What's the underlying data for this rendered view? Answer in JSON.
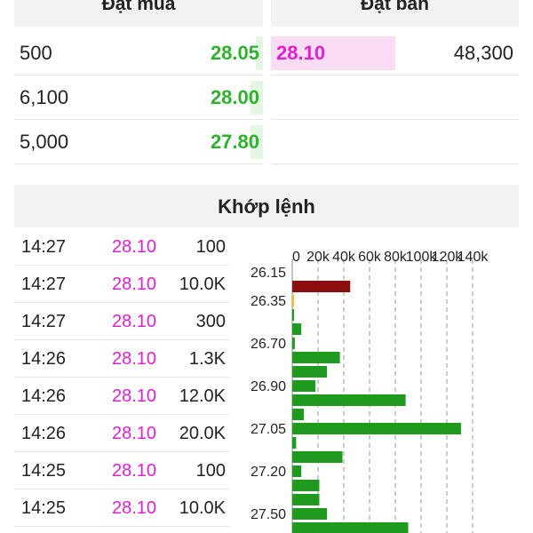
{
  "order_book": {
    "buy_title": "Đặt mua",
    "sell_title": "Đặt bán",
    "buy": [
      {
        "qty": "500",
        "price": "28.05",
        "depth": 0.03
      },
      {
        "qty": "6,100",
        "price": "28.00",
        "depth": 0.05
      },
      {
        "qty": "5,000",
        "price": "27.80",
        "depth": 0.05
      }
    ],
    "sell": [
      {
        "price": "28.10",
        "qty": "48,300",
        "depth": 0.5
      }
    ]
  },
  "trades": {
    "title": "Khớp lệnh",
    "rows": [
      {
        "time": "14:27",
        "price": "28.10",
        "volume": "100"
      },
      {
        "time": "14:27",
        "price": "28.10",
        "volume": "10.0K"
      },
      {
        "time": "14:27",
        "price": "28.10",
        "volume": "300"
      },
      {
        "time": "14:26",
        "price": "28.10",
        "volume": "1.3K"
      },
      {
        "time": "14:26",
        "price": "28.10",
        "volume": "12.0K"
      },
      {
        "time": "14:26",
        "price": "28.10",
        "volume": "20.0K"
      },
      {
        "time": "14:25",
        "price": "28.10",
        "volume": "100"
      },
      {
        "time": "14:25",
        "price": "28.10",
        "volume": "10.0K"
      }
    ]
  },
  "colors": {
    "buy_green": "#2fb32f",
    "sell_magenta": "#e020d0",
    "bar_green": "#1f9a1f",
    "bar_darkred": "#8b0e0e",
    "bar_yellow": "#f0c020"
  },
  "chart_data": {
    "type": "bar",
    "orientation": "horizontal",
    "x_ticks": [
      "0",
      "20k",
      "40k",
      "60k",
      "80k",
      "100k",
      "120k",
      "140k"
    ],
    "x_tick_labels": [
      "0",
      "20k",
      "40k",
      "60k",
      "80k",
      "100k",
      "120k",
      "140k"
    ],
    "xlim": [
      0,
      140000
    ],
    "y_labels": [
      "26.15",
      "26.35",
      "26.70",
      "26.90",
      "27.05",
      "27.20",
      "27.50"
    ],
    "y_label_index": [
      0,
      2,
      5,
      8,
      11,
      14,
      17
    ],
    "bars": [
      {
        "value": 45000,
        "color": "#8b0e0e"
      },
      {
        "value": 1000,
        "color": "#f0c020"
      },
      {
        "value": 200,
        "color": "#1f9a1f"
      },
      {
        "value": 7000,
        "color": "#1f9a1f"
      },
      {
        "value": 2000,
        "color": "#1f9a1f"
      },
      {
        "value": 37000,
        "color": "#1f9a1f"
      },
      {
        "value": 27000,
        "color": "#1f9a1f"
      },
      {
        "value": 18000,
        "color": "#1f9a1f"
      },
      {
        "value": 88000,
        "color": "#1f9a1f"
      },
      {
        "value": 9000,
        "color": "#1f9a1f"
      },
      {
        "value": 131000,
        "color": "#1f9a1f"
      },
      {
        "value": 3000,
        "color": "#1f9a1f"
      },
      {
        "value": 39000,
        "color": "#1f9a1f"
      },
      {
        "value": 7000,
        "color": "#1f9a1f"
      },
      {
        "value": 21000,
        "color": "#1f9a1f"
      },
      {
        "value": 21000,
        "color": "#1f9a1f"
      },
      {
        "value": 27000,
        "color": "#1f9a1f"
      },
      {
        "value": 90000,
        "color": "#1f9a1f"
      }
    ],
    "grid": "vertical-dashed"
  }
}
